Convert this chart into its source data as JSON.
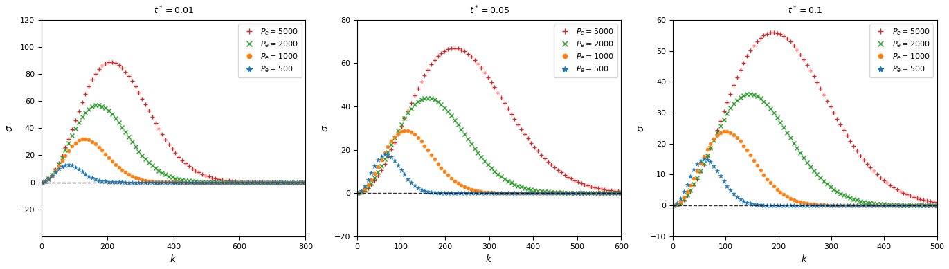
{
  "panels": [
    {
      "title": "$t^* = 0.01$",
      "xlim": [
        0,
        800
      ],
      "ylim": [
        -40,
        120
      ],
      "yticks": [
        -20,
        0,
        20,
        40,
        60,
        80,
        100,
        120
      ],
      "xticks": [
        0,
        200,
        400,
        600,
        800
      ],
      "t_star": 0.01
    },
    {
      "title": "$t^* = 0.05$",
      "xlim": [
        0,
        600
      ],
      "ylim": [
        -20,
        80
      ],
      "yticks": [
        -20,
        0,
        20,
        40,
        60,
        80
      ],
      "xticks": [
        0,
        100,
        200,
        300,
        400,
        500,
        600
      ],
      "t_star": 0.05
    },
    {
      "title": "$t^* = 0.1$",
      "xlim": [
        0,
        500
      ],
      "ylim": [
        -10,
        60
      ],
      "yticks": [
        -10,
        0,
        10,
        20,
        30,
        40,
        50,
        60
      ],
      "xticks": [
        0,
        100,
        200,
        300,
        400,
        500
      ],
      "t_star": 0.1
    }
  ],
  "peclet_values": [
    5000,
    2000,
    1000,
    500
  ],
  "colors": [
    "#d62728",
    "#2ca02c",
    "#ff7f0e",
    "#1f77b4"
  ],
  "markers": [
    "+",
    "x",
    "o",
    "*"
  ],
  "markersizes": [
    5,
    5,
    3.5,
    5
  ],
  "R": 3,
  "legend_labels": [
    "$P_e = 5000$",
    "$P_e = 2000$",
    "$P_e = 1000$",
    "$P_e = 500$"
  ]
}
